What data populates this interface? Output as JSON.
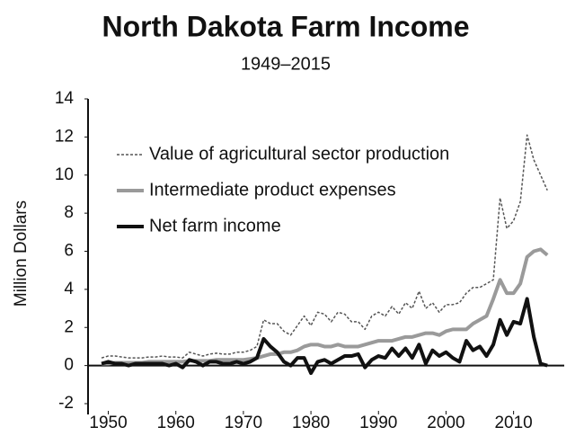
{
  "chart_data": {
    "type": "line",
    "title": "North Dakota Farm Income",
    "subtitle": "1949–2015",
    "y_label": "Million Dollars",
    "x": [
      1949,
      1950,
      1951,
      1952,
      1953,
      1954,
      1955,
      1956,
      1957,
      1958,
      1959,
      1960,
      1961,
      1962,
      1963,
      1964,
      1965,
      1966,
      1967,
      1968,
      1969,
      1970,
      1971,
      1972,
      1973,
      1974,
      1975,
      1976,
      1977,
      1978,
      1979,
      1980,
      1981,
      1982,
      1983,
      1984,
      1985,
      1986,
      1987,
      1988,
      1989,
      1990,
      1991,
      1992,
      1993,
      1994,
      1995,
      1996,
      1997,
      1998,
      1999,
      2000,
      2001,
      2002,
      2003,
      2004,
      2005,
      2006,
      2007,
      2008,
      2009,
      2010,
      2011,
      2012,
      2013,
      2014,
      2015
    ],
    "series": [
      {
        "name": "Value of agricultural sector production",
        "color": "#555555",
        "dash": true,
        "width": 1.5,
        "values": [
          0.4,
          0.5,
          0.5,
          0.45,
          0.4,
          0.4,
          0.4,
          0.45,
          0.45,
          0.5,
          0.45,
          0.45,
          0.4,
          0.7,
          0.6,
          0.5,
          0.6,
          0.65,
          0.6,
          0.6,
          0.7,
          0.7,
          0.8,
          1.0,
          2.4,
          2.2,
          2.2,
          1.8,
          1.6,
          2.1,
          2.6,
          2.1,
          2.8,
          2.7,
          2.3,
          2.8,
          2.7,
          2.3,
          2.3,
          1.9,
          2.6,
          2.8,
          2.6,
          3.1,
          2.7,
          3.3,
          3.0,
          3.9,
          3.0,
          3.3,
          2.8,
          3.2,
          3.2,
          3.3,
          3.8,
          4.1,
          4.1,
          4.3,
          4.5,
          8.8,
          7.2,
          7.6,
          8.6,
          12.1,
          10.8,
          10.0,
          9.2
        ]
      },
      {
        "name": "Intermediate product expenses",
        "color": "#9a9a9a",
        "dash": false,
        "width": 4,
        "values": [
          0.1,
          0.1,
          0.15,
          0.15,
          0.15,
          0.15,
          0.15,
          0.2,
          0.2,
          0.2,
          0.2,
          0.2,
          0.2,
          0.25,
          0.25,
          0.25,
          0.25,
          0.3,
          0.3,
          0.3,
          0.3,
          0.3,
          0.35,
          0.4,
          0.5,
          0.6,
          0.6,
          0.7,
          0.7,
          0.8,
          1.0,
          1.1,
          1.1,
          1.0,
          1.0,
          1.1,
          1.0,
          1.0,
          1.0,
          1.1,
          1.2,
          1.3,
          1.3,
          1.3,
          1.4,
          1.5,
          1.5,
          1.6,
          1.7,
          1.7,
          1.6,
          1.8,
          1.9,
          1.9,
          1.9,
          2.2,
          2.4,
          2.6,
          3.5,
          4.5,
          3.8,
          3.8,
          4.3,
          5.7,
          6.0,
          6.1,
          5.8
        ]
      },
      {
        "name": "Net farm income",
        "color": "#111111",
        "dash": false,
        "width": 4,
        "values": [
          0.1,
          0.2,
          0.1,
          0.1,
          0.0,
          0.1,
          0.1,
          0.1,
          0.1,
          0.1,
          0.0,
          0.1,
          -0.1,
          0.3,
          0.2,
          0.0,
          0.2,
          0.2,
          0.1,
          0.1,
          0.2,
          0.1,
          0.2,
          0.4,
          1.4,
          1.0,
          0.7,
          0.2,
          0.0,
          0.4,
          0.4,
          -0.4,
          0.2,
          0.3,
          0.1,
          0.3,
          0.5,
          0.5,
          0.6,
          -0.1,
          0.3,
          0.5,
          0.4,
          0.9,
          0.5,
          0.9,
          0.4,
          1.1,
          0.1,
          0.8,
          0.5,
          0.7,
          0.4,
          0.2,
          1.3,
          0.8,
          1.0,
          0.5,
          1.1,
          2.4,
          1.6,
          2.3,
          2.2,
          3.5,
          1.5,
          0.1,
          0.0
        ]
      }
    ],
    "xlim": [
      1947,
      2017.5
    ],
    "xticks": [
      1950,
      1960,
      1970,
      1980,
      1990,
      2000,
      2010
    ],
    "ylim": [
      -2,
      14
    ],
    "yticks": [
      -2,
      0,
      2,
      4,
      6,
      8,
      10,
      12,
      14
    ],
    "legend": "upper left",
    "grid": false
  }
}
